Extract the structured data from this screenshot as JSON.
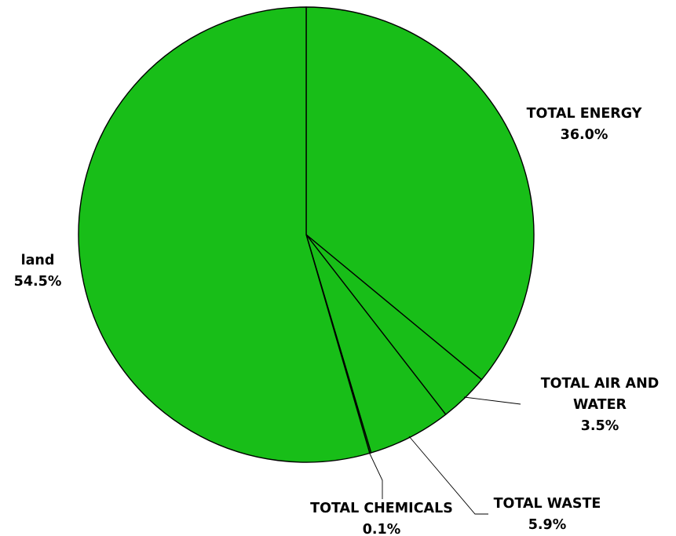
{
  "chart_data": {
    "type": "pie",
    "slice_color": "#18BE18",
    "edge_color": "#000000",
    "start": "12 o'clock",
    "direction": "clockwise",
    "slices": [
      {
        "label": "TOTAL ENERGY",
        "value": 36.0,
        "value_text": "36.0%"
      },
      {
        "label": "TOTAL AIR AND WATER",
        "value": 3.5,
        "value_text": "3.5%"
      },
      {
        "label": "TOTAL WASTE",
        "value": 5.9,
        "value_text": "5.9%"
      },
      {
        "label": "TOTAL CHEMICALS",
        "value": 0.1,
        "value_text": "0.1%"
      },
      {
        "label": "land",
        "value": 54.5,
        "value_text": "54.5%"
      }
    ]
  }
}
